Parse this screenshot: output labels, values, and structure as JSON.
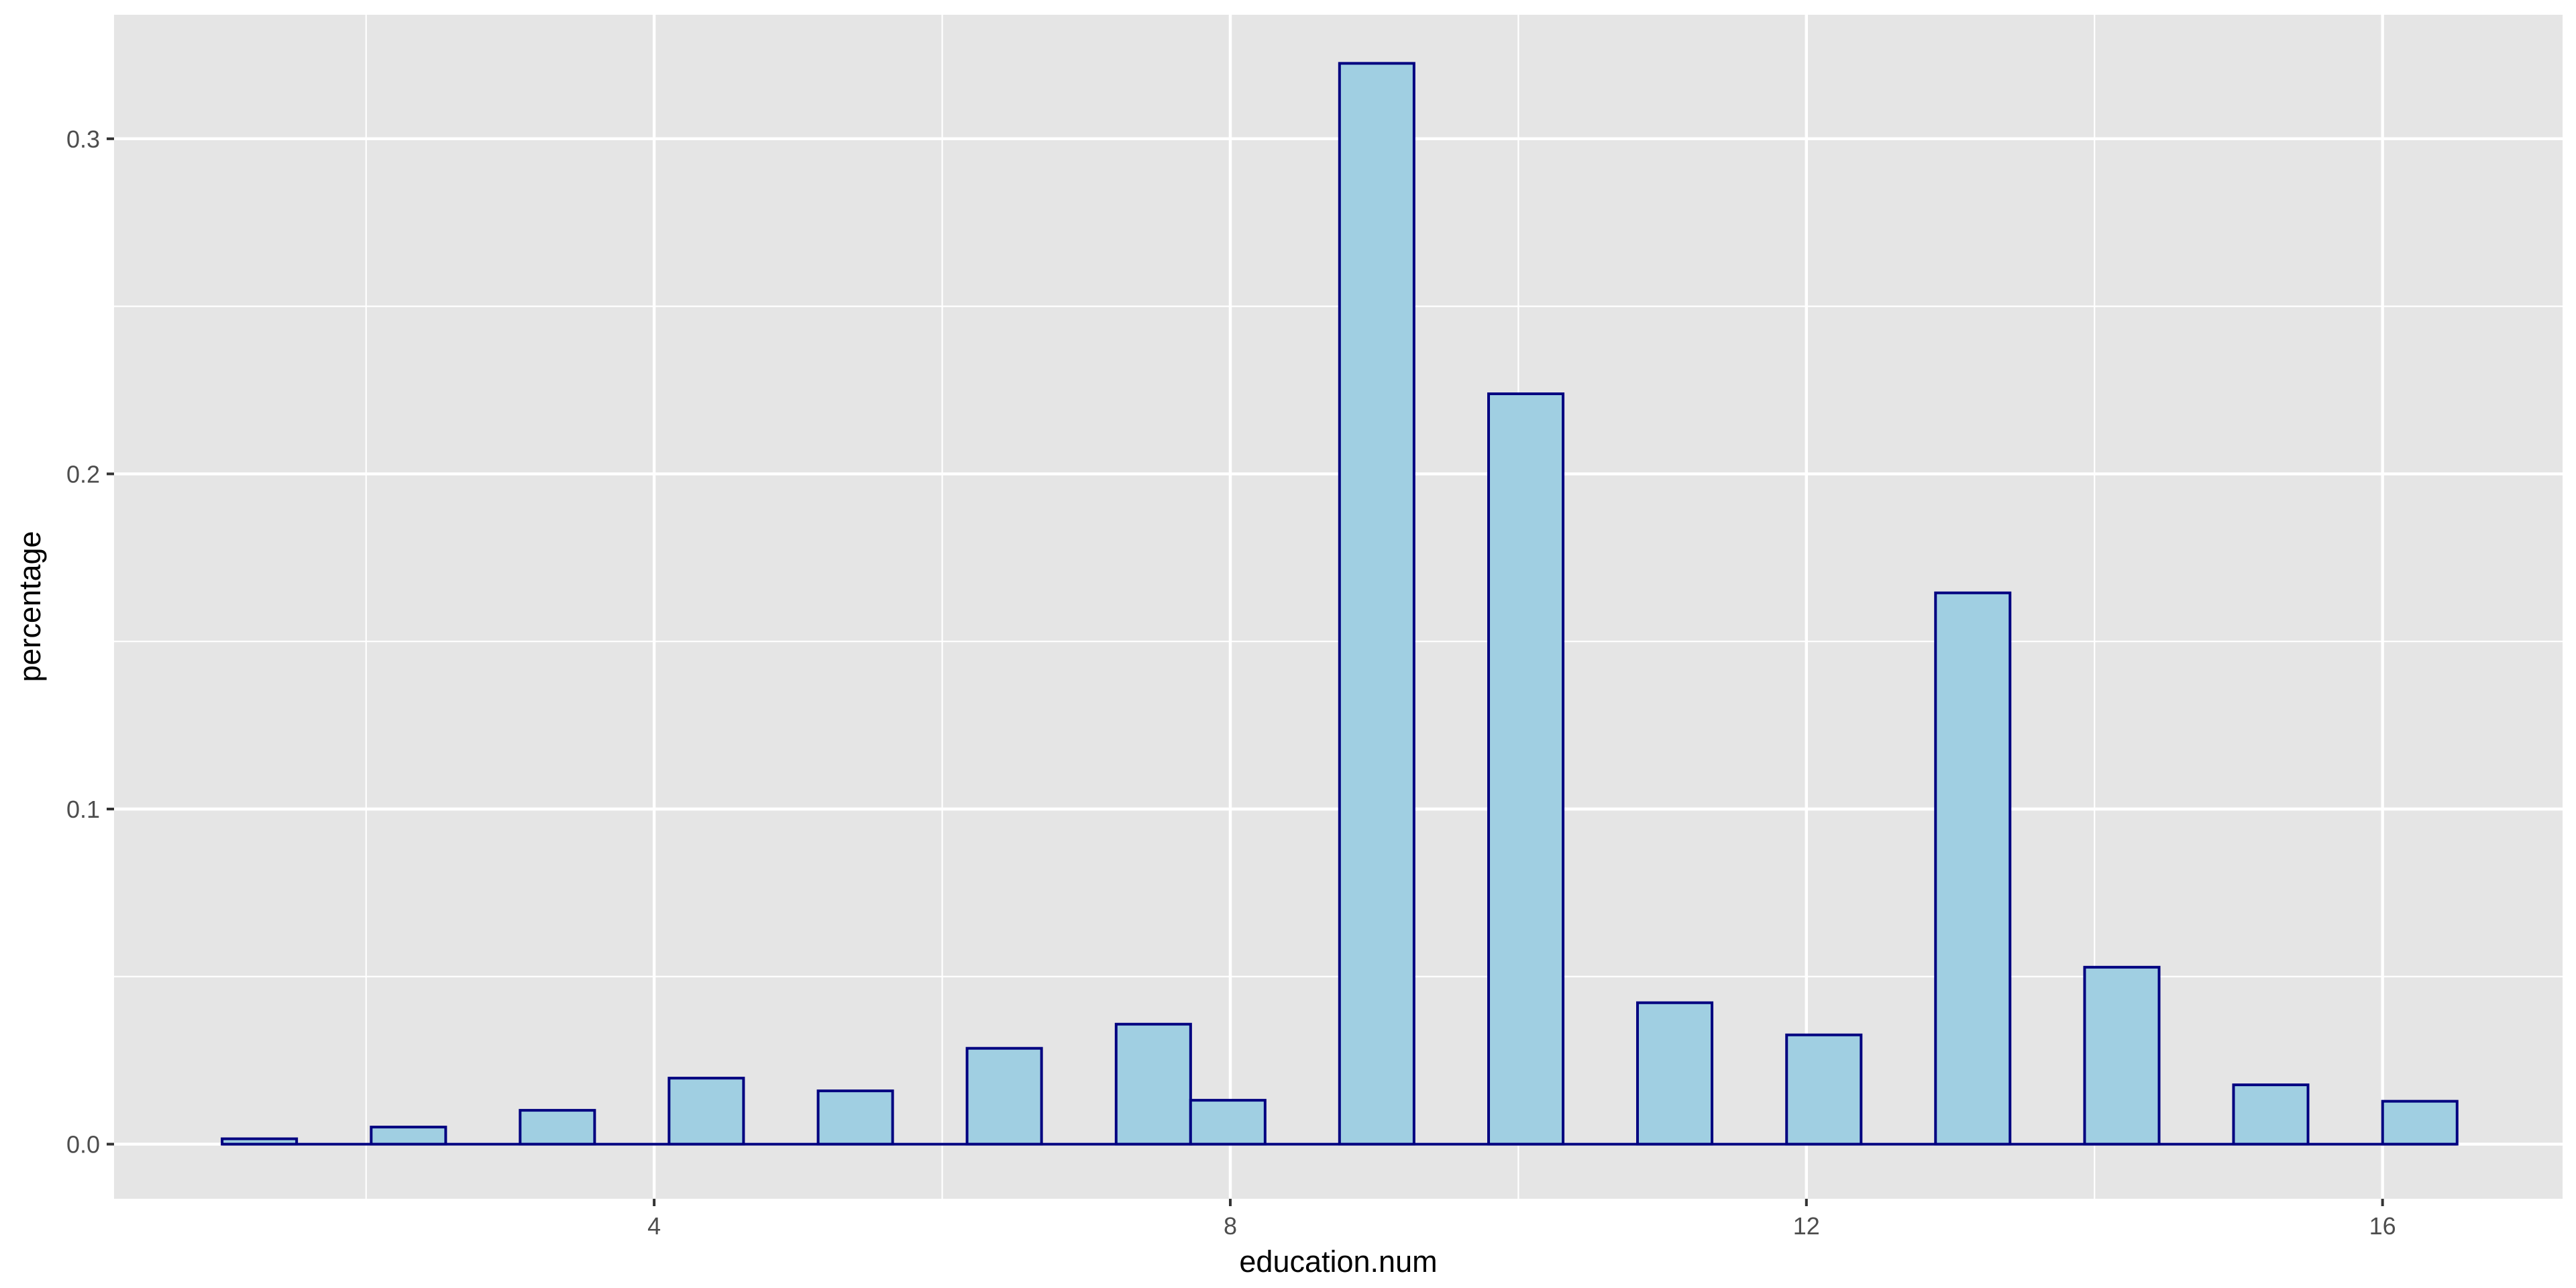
{
  "chart_data": {
    "type": "bar",
    "xlabel": "education.num",
    "ylabel": "percentage",
    "xlim": [
      0.25,
      17.25
    ],
    "ylim": [
      -0.0163,
      0.337
    ],
    "x_ticks": [
      4,
      8,
      12,
      16
    ],
    "x_tick_labels": [
      "4",
      "8",
      "12",
      "16"
    ],
    "y_ticks": [
      0.0,
      0.1,
      0.2,
      0.3
    ],
    "y_tick_labels": [
      "0.0",
      "0.1",
      "0.2",
      "0.3"
    ],
    "bin_width": 0.5172,
    "x": [
      1.259,
      2.294,
      3.328,
      4.362,
      5.397,
      6.431,
      7.466,
      7.983,
      9.017,
      10.052,
      11.086,
      12.121,
      13.155,
      14.19,
      15.224,
      16.259
    ],
    "values": [
      0.0016,
      0.0051,
      0.0101,
      0.0197,
      0.0159,
      0.0286,
      0.0358,
      0.0131,
      0.3225,
      0.2239,
      0.0422,
      0.0326,
      0.1645,
      0.0528,
      0.0177,
      0.0128
    ],
    "grid": true,
    "colors": {
      "panel_background": "#e5e5e5",
      "grid_major": "#ffffff",
      "bar_fill": "#a0cfe2",
      "bar_outline": "#000080"
    }
  }
}
